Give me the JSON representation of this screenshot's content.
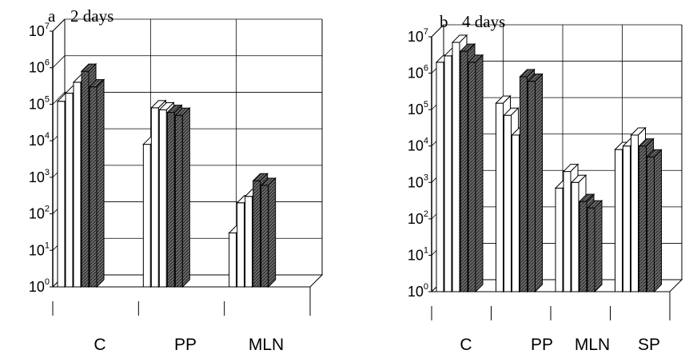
{
  "chart_data": [
    {
      "type": "bar",
      "panel": "a",
      "title": "2 days",
      "categories": [
        "C",
        "PP",
        "MLN"
      ],
      "series": [
        {
          "values": [
            120000,
            8000,
            30
          ]
        },
        {
          "values": [
            200000,
            80000,
            200
          ]
        },
        {
          "values": [
            400000,
            70000,
            300
          ]
        },
        {
          "values": [
            800000,
            60000,
            800
          ]
        },
        {
          "values": [
            300000,
            50000,
            600
          ]
        }
      ],
      "yscale": "log",
      "ylim": [
        1,
        10000000
      ],
      "yticks": [
        {
          "base": "10",
          "exp": "0"
        },
        {
          "base": "10",
          "exp": "1"
        },
        {
          "base": "10",
          "exp": "2"
        },
        {
          "base": "10",
          "exp": "3"
        },
        {
          "base": "10",
          "exp": "4"
        },
        {
          "base": "10",
          "exp": "5"
        },
        {
          "base": "10",
          "exp": "6"
        },
        {
          "base": "10",
          "exp": "7"
        }
      ],
      "grid": true
    },
    {
      "type": "bar",
      "panel": "b",
      "title": "4 days",
      "categories": [
        "C",
        "PP",
        "MLN",
        "SP"
      ],
      "series": [
        {
          "values": [
            2000000,
            150000,
            700,
            8000
          ]
        },
        {
          "values": [
            3000000,
            70000,
            2000,
            10000
          ]
        },
        {
          "values": [
            7000000,
            20000,
            1000,
            20000
          ]
        },
        {
          "values": [
            4000000,
            800000,
            300,
            10000
          ]
        },
        {
          "values": [
            2000000,
            600000,
            200,
            5000
          ]
        }
      ],
      "yscale": "log",
      "ylim": [
        1,
        10000000
      ],
      "yticks": [
        {
          "base": "10",
          "exp": "0"
        },
        {
          "base": "10",
          "exp": "1"
        },
        {
          "base": "10",
          "exp": "2"
        },
        {
          "base": "10",
          "exp": "3"
        },
        {
          "base": "10",
          "exp": "4"
        },
        {
          "base": "10",
          "exp": "5"
        },
        {
          "base": "10",
          "exp": "6"
        },
        {
          "base": "10",
          "exp": "7"
        }
      ],
      "grid": true
    }
  ],
  "colors": {
    "open_bar": "#ffffff",
    "hatched_bar": "#555555",
    "axis": "#000000"
  }
}
